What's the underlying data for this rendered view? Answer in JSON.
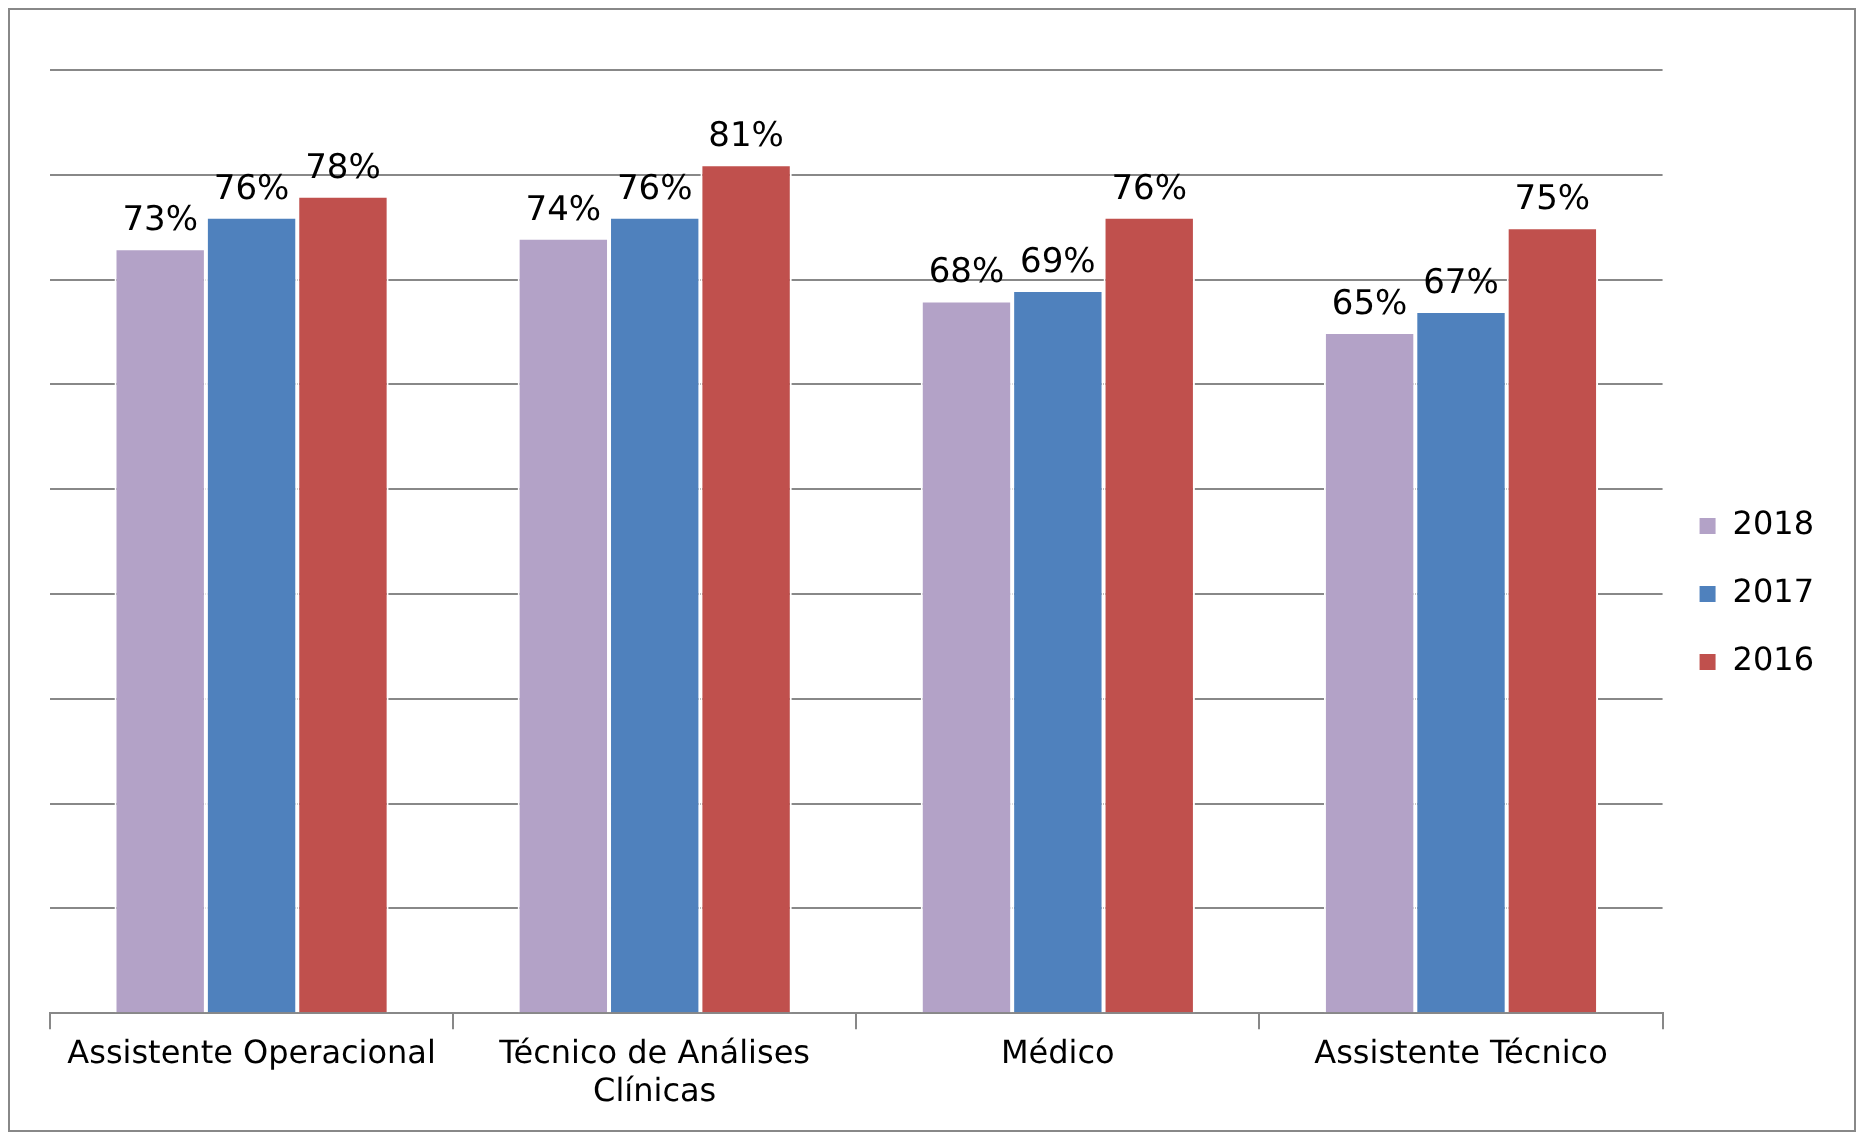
{
  "chart_data": {
    "type": "bar",
    "categories": [
      "Assistente Operacional",
      "Técnico de Análises Clínicas",
      "Médico",
      "Assistente Técnico"
    ],
    "series": [
      {
        "name": "2018",
        "color": "#b3a2c7",
        "values": [
          73,
          74,
          68,
          65
        ],
        "value_labels": [
          "73%",
          "74%",
          "68%",
          "65%"
        ]
      },
      {
        "name": "2017",
        "color": "#4f81bd",
        "values": [
          76,
          76,
          69,
          67
        ],
        "value_labels": [
          "76%",
          "76%",
          "69%",
          "67%"
        ]
      },
      {
        "name": "2016",
        "color": "#c0504d",
        "values": [
          78,
          81,
          76,
          75
        ],
        "value_labels": [
          "78%",
          "81%",
          "76%",
          "75%"
        ]
      }
    ],
    "ylim": [
      0,
      90
    ],
    "yticks": [
      0,
      {
        "value": 10,
        "label": null
      },
      {
        "value": 20,
        "label": null
      },
      {
        "value": 30,
        "label": null
      },
      {
        "value": 40,
        "label": null
      },
      {
        "value": 50,
        "label": null
      },
      {
        "value": 60,
        "label": null
      },
      {
        "value": 70,
        "label": null
      },
      {
        "value": 80,
        "label": null
      },
      {
        "value": 90,
        "label": null
      }
    ],
    "tick_labels": "x",
    "grid": "y",
    "legend": "right"
  }
}
